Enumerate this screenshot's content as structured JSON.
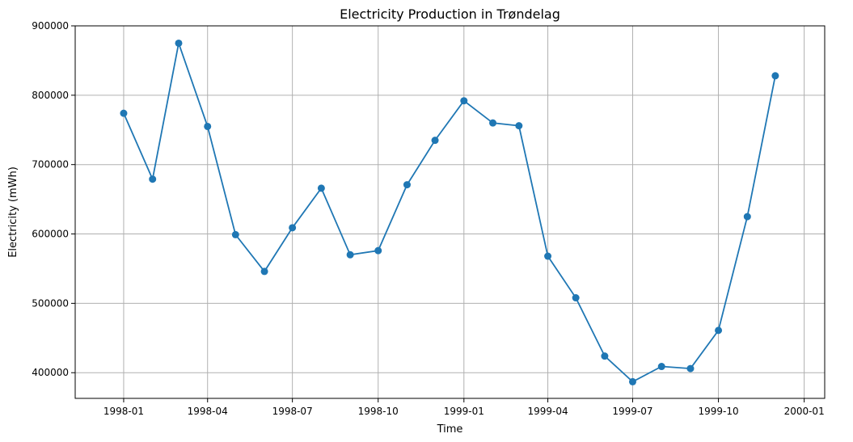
{
  "chart_data": {
    "type": "line",
    "title": "Electricity Production in Trøndelag",
    "xlabel": "Time",
    "ylabel": "Electricity (mWh)",
    "x": [
      "1998-01",
      "1998-02",
      "1998-03",
      "1998-04",
      "1998-05",
      "1998-06",
      "1998-07",
      "1998-08",
      "1998-09",
      "1998-10",
      "1998-11",
      "1998-12",
      "1999-01",
      "1999-02",
      "1999-03",
      "1999-04",
      "1999-05",
      "1999-06",
      "1999-07",
      "1999-08",
      "1999-09",
      "1999-10",
      "1999-11",
      "1999-12"
    ],
    "series": [
      {
        "values": [
          774000,
          679000,
          875000,
          755000,
          599000,
          546000,
          609000,
          666000,
          570000,
          576000,
          671000,
          735000,
          792000,
          760000,
          756000,
          568000,
          508000,
          424000,
          387000,
          409000,
          406000,
          461000,
          625000,
          828000
        ],
        "color": "#1f77b4",
        "marker": "circle"
      }
    ],
    "xticks": [
      "1998-01",
      "1998-04",
      "1998-07",
      "1998-10",
      "1999-01",
      "1999-04",
      "1999-07",
      "1999-10",
      "2000-01"
    ],
    "yticks": [
      "400000",
      "500000",
      "600000",
      "700000",
      "800000",
      "900000"
    ],
    "ylim": [
      363000,
      900000
    ],
    "xlim": [
      "1997-11-10",
      "2000-01-23"
    ],
    "grid": true
  }
}
